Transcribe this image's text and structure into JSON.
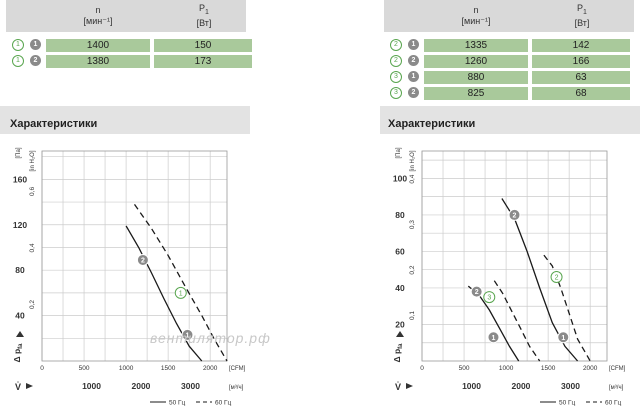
{
  "tables": [
    {
      "header": {
        "n_label": "n",
        "n_unit": "[мин⁻¹]",
        "p_label": "P",
        "p_sub": "1",
        "p_unit": "[Вт]"
      },
      "rows": [
        {
          "outline": "1",
          "filled": "1",
          "n": "1400",
          "p": "150"
        },
        {
          "outline": "1",
          "filled": "2",
          "n": "1380",
          "p": "173"
        }
      ]
    },
    {
      "header": {
        "n_label": "n",
        "n_unit": "[мин⁻¹]",
        "p_label": "P",
        "p_sub": "1",
        "p_unit": "[Вт]"
      },
      "rows": [
        {
          "outline": "2",
          "filled": "1",
          "n": "1335",
          "p": "142"
        },
        {
          "outline": "2",
          "filled": "2",
          "n": "1260",
          "p": "166"
        },
        {
          "outline": "3",
          "filled": "1",
          "n": "880",
          "p": "63"
        },
        {
          "outline": "3",
          "filled": "2",
          "n": "825",
          "p": "68"
        }
      ]
    }
  ],
  "sections": [
    "Характеристики",
    "Характеристики"
  ],
  "watermark": "вентилятор.рф",
  "colors": {
    "grid": "#cccccc",
    "curve": "#1a1a1a",
    "cell": "#a9c99b",
    "header": "#d9d9d9",
    "marker_outline": "#5aa650",
    "marker_filled": "#8a8a8a"
  },
  "chart_data": [
    {
      "type": "line",
      "xlabel_cfm": "[CFM]",
      "xlabel_m3h": "[м³/ч]",
      "ylabel_pa": "[Па]",
      "ylabel_inh2o": "[in H₂O]",
      "y_axis_symbol": "Δ p",
      "y_axis_sub": "fa",
      "x_axis_symbol": "V̇",
      "x_cfm_ticks": [
        "0",
        "500",
        "1000",
        "1500",
        "2000"
      ],
      "x_m3h_ticks": [
        "1000",
        "2000",
        "3000"
      ],
      "y_pa_ticks": [
        "40",
        "80",
        "120",
        "160"
      ],
      "y_in_ticks": [
        "0,2",
        "0,4",
        "0,6"
      ],
      "xlim_cfm": [
        0,
        2200
      ],
      "ylim_pa": [
        0,
        185
      ],
      "series": [
        {
          "name": "50 Гц",
          "style": "solid",
          "x": [
            1000,
            1150,
            1300,
            1450,
            1600,
            1750,
            1900
          ],
          "y": [
            119,
            100,
            78,
            55,
            33,
            13,
            0
          ]
        },
        {
          "name": "60 Гц",
          "style": "dashed",
          "x": [
            1100,
            1300,
            1500,
            1700,
            1900,
            2050,
            2200
          ],
          "y": [
            138,
            117,
            93,
            66,
            40,
            19,
            0
          ]
        }
      ],
      "markers": [
        {
          "label": "2",
          "kind": "filled",
          "x": 1200,
          "y": 89
        },
        {
          "label": "1",
          "kind": "outline",
          "x": 1650,
          "y": 60
        },
        {
          "label": "1",
          "kind": "filled",
          "x": 1730,
          "y": 23
        }
      ],
      "legend": [
        "50 Гц",
        "60 Гц"
      ]
    },
    {
      "type": "line",
      "xlabel_cfm": "[CFM]",
      "xlabel_m3h": "[м³/ч]",
      "ylabel_pa": "[Па]",
      "ylabel_inh2o": "[in H₂O]",
      "y_axis_symbol": "Δ p",
      "y_axis_sub": "fa",
      "x_axis_symbol": "V̇",
      "x_cfm_ticks": [
        "0",
        "500",
        "1000",
        "1500",
        "2000"
      ],
      "x_m3h_ticks": [
        "1000",
        "2000",
        "3000"
      ],
      "y_pa_ticks": [
        "20",
        "40",
        "60",
        "80",
        "100"
      ],
      "y_in_ticks": [
        "0,1",
        "0,2",
        "0,3",
        "0,4"
      ],
      "xlim_cfm": [
        0,
        2200
      ],
      "ylim_pa": [
        0,
        115
      ],
      "series": [
        {
          "name": "50 Гц",
          "style": "solid",
          "x": [
            950,
            1100,
            1250,
            1400,
            1550,
            1700,
            1850
          ],
          "y": [
            89,
            78,
            60,
            40,
            21,
            8,
            0
          ]
        },
        {
          "name": "60 Гц",
          "style": "dashed",
          "x": [
            1450,
            1550,
            1650,
            1750,
            1850,
            2000
          ],
          "y": [
            58,
            52,
            40,
            26,
            12,
            0
          ]
        },
        {
          "name": "50 Гц",
          "style": "solid",
          "x": [
            550,
            680,
            800,
            920,
            1040,
            1150
          ],
          "y": [
            41,
            36,
            28,
            18,
            8,
            0
          ]
        },
        {
          "name": "60 Гц",
          "style": "dashed",
          "x": [
            860,
            960,
            1060,
            1170,
            1280,
            1400
          ],
          "y": [
            44,
            37,
            28,
            18,
            8,
            0
          ]
        }
      ],
      "markers": [
        {
          "label": "2",
          "kind": "filled",
          "x": 1100,
          "y": 80
        },
        {
          "label": "2",
          "kind": "outline",
          "x": 1600,
          "y": 46
        },
        {
          "label": "1",
          "kind": "filled",
          "x": 1680,
          "y": 13
        },
        {
          "label": "2",
          "kind": "filled",
          "x": 650,
          "y": 38
        },
        {
          "label": "3",
          "kind": "outline",
          "x": 800,
          "y": 35
        },
        {
          "label": "1",
          "kind": "filled",
          "x": 850,
          "y": 13
        }
      ],
      "legend": [
        "50 Гц",
        "60 Гц"
      ]
    }
  ]
}
